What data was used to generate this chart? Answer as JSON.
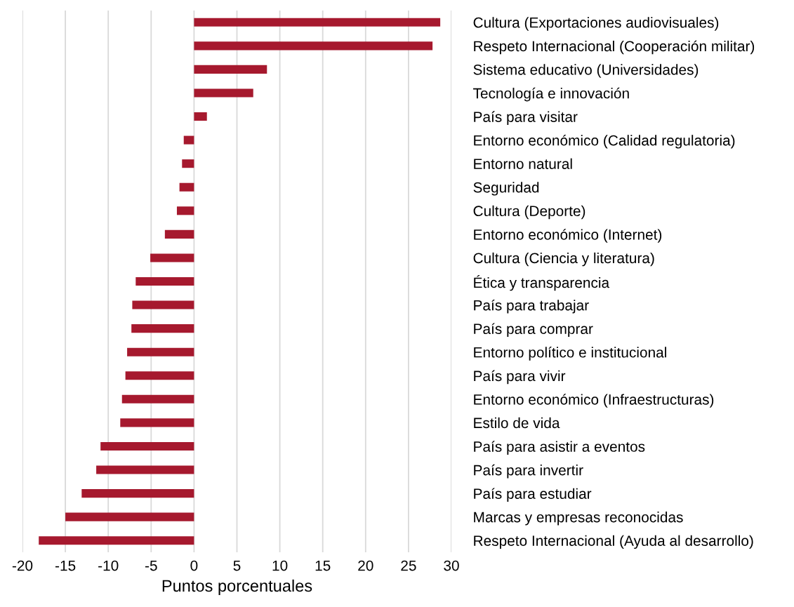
{
  "chart_data": {
    "type": "bar",
    "orientation": "horizontal",
    "xlabel": "Puntos porcentuales",
    "categories": [
      "Cultura (Exportaciones audiovisuales)",
      "Respeto Internacional (Cooperación militar)",
      "Sistema educativo (Universidades)",
      "Tecnología e innovación",
      "País para visitar",
      "Entorno económico (Calidad regulatoria)",
      "Entorno natural",
      "Seguridad",
      "Cultura (Deporte)",
      "Entorno económico (Internet)",
      "Cultura (Ciencia y literatura)",
      "Ética y transparencia",
      "País para trabajar",
      "País para comprar",
      "Entorno político e institucional",
      "País para vivir",
      "Entorno económico (Infraestructuras)",
      "Estilo de vida",
      "País para asistir a eventos",
      "País para invertir",
      "País para estudiar",
      "Marcas y empresas reconocidas",
      "Respeto Internacional (Ayuda al desarrollo)"
    ],
    "values": [
      28.7,
      27.8,
      8.5,
      6.9,
      1.5,
      -1.2,
      -1.4,
      -1.7,
      -2.0,
      -3.4,
      -5.1,
      -6.8,
      -7.2,
      -7.3,
      -7.8,
      -8.0,
      -8.4,
      -8.6,
      -10.9,
      -11.4,
      -13.1,
      -15.0,
      -18.1
    ],
    "color": "#a6192e",
    "xlim": [
      -20,
      30
    ],
    "xticks": [
      -20,
      -15,
      -10,
      -5,
      0,
      5,
      10,
      15,
      20,
      25,
      30
    ],
    "grid": "x",
    "legend": false
  }
}
